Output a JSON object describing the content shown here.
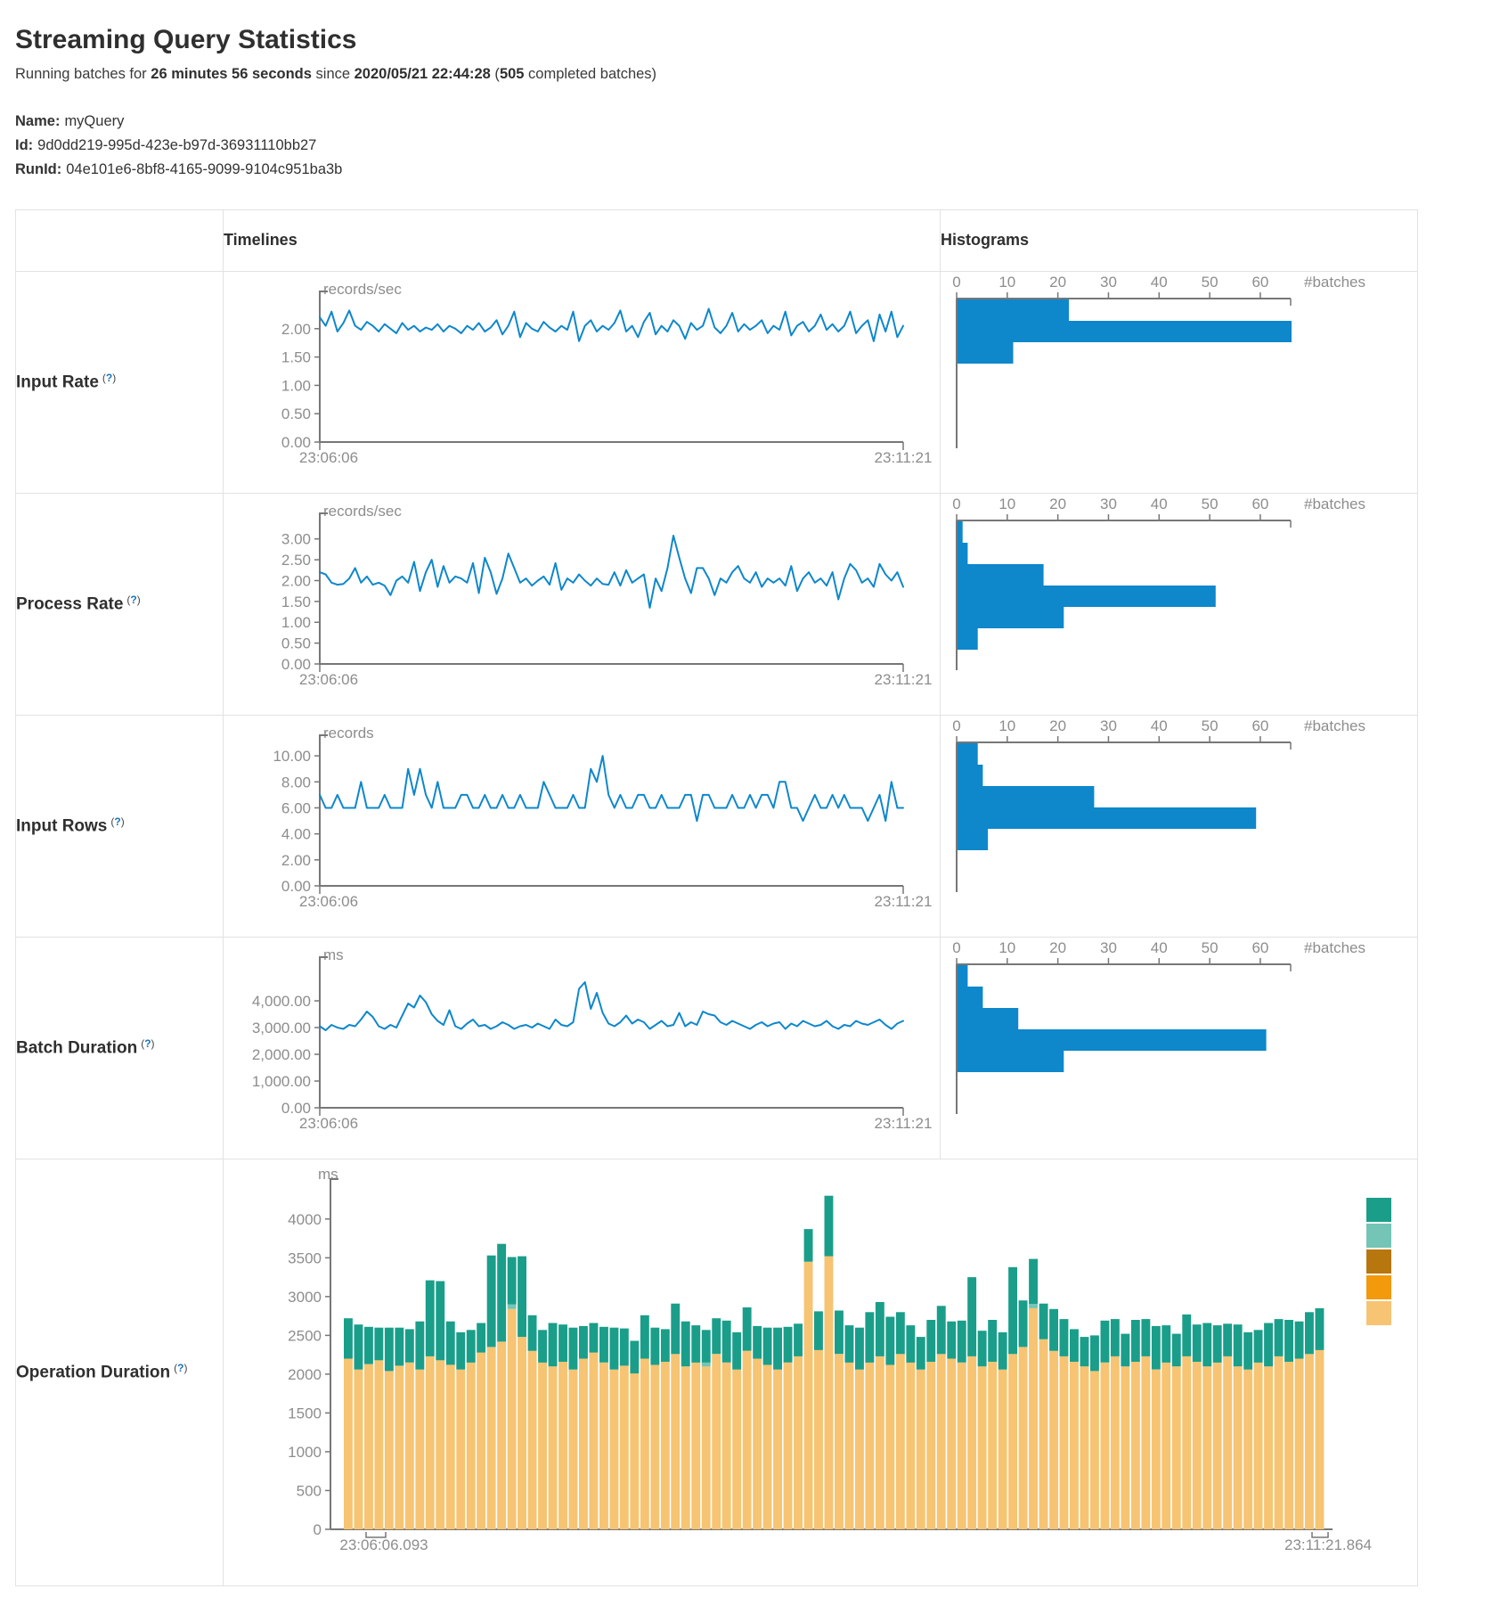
{
  "page": {
    "title": "Streaming Query Statistics",
    "subtitle": {
      "prefix": "Running batches for ",
      "duration": "26 minutes 56 seconds",
      "mid": " since ",
      "start_time": "2020/05/21 22:44:28",
      "paren_open": " (",
      "batches": "505",
      "suffix": " completed batches)"
    },
    "name_label": "Name:",
    "name": "myQuery",
    "id_label": "Id:",
    "id": "9d0dd219-995d-423e-b97d-36931110bb27",
    "runid_label": "RunId:",
    "runid": "04e101e6-8bf8-4165-9099-9104c951ba3b"
  },
  "table": {
    "header": {
      "timelines": "Timelines",
      "histograms": "Histograms"
    },
    "help": {
      "open": "(",
      "q": "?",
      "close": ")"
    },
    "rows": [
      {
        "label": "Input Rate"
      },
      {
        "label": "Process Rate"
      },
      {
        "label": "Input Rows"
      },
      {
        "label": "Batch Duration"
      },
      {
        "label": "Operation Duration"
      }
    ]
  },
  "colors": {
    "blue": "#0e87cb",
    "axis": "#777777",
    "ticktext": "#8d8d8d"
  },
  "chart_data": [
    {
      "type": "line",
      "title": "Input Rate timeline",
      "unit": "records/sec",
      "ylim": [
        0,
        2.5
      ],
      "yticks": [
        {
          "v": 0,
          "label": "0.00"
        },
        {
          "v": 0.5,
          "label": "0.50"
        },
        {
          "v": 1,
          "label": "1.00"
        },
        {
          "v": 1.5,
          "label": "1.50"
        },
        {
          "v": 2,
          "label": "2.00"
        }
      ],
      "x_start_label": "23:06:06",
      "x_end_label": "23:11:21",
      "color": "#0e87cb",
      "values": [
        2.2,
        2.05,
        2.3,
        1.95,
        2.1,
        2.32,
        2.05,
        1.98,
        2.12,
        2.05,
        1.95,
        2.08,
        2.0,
        1.92,
        2.1,
        1.98,
        2.05,
        1.95,
        2.02,
        1.98,
        2.08,
        1.95,
        2.05,
        2.0,
        1.92,
        2.05,
        1.98,
        2.1,
        1.95,
        2.02,
        2.15,
        1.9,
        2.05,
        2.3,
        1.85,
        2.1,
        2.0,
        1.95,
        2.12,
        2.02,
        1.95,
        2.05,
        1.98,
        2.3,
        1.78,
        2.05,
        2.15,
        1.95,
        2.05,
        1.98,
        2.1,
        2.32,
        1.95,
        2.05,
        1.85,
        2.12,
        2.28,
        1.9,
        2.05,
        1.95,
        2.15,
        2.05,
        1.82,
        2.1,
        1.98,
        2.05,
        2.35,
        2.02,
        1.92,
        2.05,
        2.28,
        1.95,
        2.08,
        1.98,
        2.05,
        2.15,
        1.92,
        2.05,
        1.98,
        2.3,
        1.88,
        2.05,
        2.12,
        1.95,
        2.05,
        2.25,
        1.98,
        2.08,
        1.95,
        2.05,
        2.3,
        1.92,
        2.05,
        2.15,
        1.78,
        2.25,
        1.95,
        2.3,
        1.85,
        2.05
      ]
    },
    {
      "type": "hbar",
      "title": "Input Rate histogram",
      "xlabel": "#batches",
      "xticks": [
        0,
        10,
        20,
        30,
        40,
        50,
        60
      ],
      "xmax": 66,
      "color": "#0e87cb",
      "values": [
        22,
        66,
        11
      ]
    },
    {
      "type": "line",
      "title": "Process Rate timeline",
      "unit": "records/sec",
      "ylim": [
        0,
        3.4
      ],
      "yticks": [
        {
          "v": 0,
          "label": "0.00"
        },
        {
          "v": 0.5,
          "label": "0.50"
        },
        {
          "v": 1,
          "label": "1.00"
        },
        {
          "v": 1.5,
          "label": "1.50"
        },
        {
          "v": 2,
          "label": "2.00"
        },
        {
          "v": 2.5,
          "label": "2.50"
        },
        {
          "v": 3,
          "label": "3.00"
        }
      ],
      "x_start_label": "23:06:06",
      "x_end_label": "23:11:21",
      "color": "#0e87cb",
      "values": [
        2.2,
        2.15,
        1.95,
        1.9,
        1.92,
        2.05,
        2.3,
        1.95,
        2.1,
        1.9,
        1.95,
        1.88,
        1.65,
        2.0,
        2.1,
        1.95,
        2.45,
        1.75,
        2.2,
        2.5,
        1.85,
        2.35,
        1.95,
        2.1,
        2.05,
        1.95,
        2.42,
        1.7,
        2.55,
        2.2,
        1.68,
        2.05,
        2.65,
        2.3,
        1.95,
        2.05,
        1.88,
        2.0,
        2.1,
        1.9,
        2.42,
        1.78,
        2.05,
        1.95,
        2.15,
        2.0,
        1.88,
        2.05,
        1.92,
        1.9,
        2.2,
        1.88,
        2.25,
        1.95,
        2.05,
        2.15,
        1.35,
        2.05,
        1.75,
        2.3,
        3.08,
        2.55,
        2.05,
        1.7,
        2.3,
        2.3,
        2.05,
        1.65,
        2.05,
        1.95,
        2.2,
        2.35,
        2.05,
        1.95,
        2.2,
        1.85,
        2.05,
        1.95,
        2.05,
        1.88,
        2.35,
        1.75,
        2.05,
        2.2,
        1.95,
        2.05,
        1.88,
        2.2,
        1.55,
        2.05,
        2.4,
        2.25,
        1.95,
        2.05,
        1.85,
        2.4,
        2.15,
        2.0,
        2.2,
        1.85
      ]
    },
    {
      "type": "hbar",
      "title": "Process Rate histogram",
      "xlabel": "#batches",
      "xticks": [
        0,
        10,
        20,
        30,
        40,
        50,
        60
      ],
      "xmax": 66,
      "color": "#0e87cb",
      "values": [
        1,
        2,
        17,
        51,
        21,
        4
      ]
    },
    {
      "type": "line",
      "title": "Input Rows timeline",
      "unit": "records",
      "ylim": [
        0,
        10.9
      ],
      "yticks": [
        {
          "v": 0,
          "label": "0.00"
        },
        {
          "v": 2,
          "label": "2.00"
        },
        {
          "v": 4,
          "label": "4.00"
        },
        {
          "v": 6,
          "label": "6.00"
        },
        {
          "v": 8,
          "label": "8.00"
        },
        {
          "v": 10,
          "label": "10.00"
        }
      ],
      "x_start_label": "23:06:06",
      "x_end_label": "23:11:21",
      "color": "#0e87cb",
      "values": [
        7,
        6,
        6,
        7,
        6,
        6,
        6,
        8,
        6,
        6,
        6,
        7,
        6,
        6,
        6,
        9,
        7,
        9,
        7,
        6,
        8,
        6,
        6,
        6,
        7,
        7,
        6,
        6,
        7,
        6,
        6,
        7,
        6,
        6,
        7,
        6,
        6,
        6,
        8,
        7,
        6,
        6,
        6,
        7,
        6,
        6,
        9,
        8,
        10,
        7,
        6,
        7,
        6,
        6,
        7,
        7,
        6,
        6,
        7,
        6,
        6,
        6,
        7,
        7,
        5,
        7,
        7,
        6,
        6,
        6,
        7,
        6,
        6,
        7,
        6,
        7,
        7,
        6,
        8,
        8,
        6,
        6,
        5,
        6,
        7,
        6,
        6,
        7,
        6,
        7,
        6,
        6,
        6,
        5,
        6,
        7,
        5,
        8,
        6,
        6
      ]
    },
    {
      "type": "hbar",
      "title": "Input Rows histogram",
      "xlabel": "#batches",
      "xticks": [
        0,
        10,
        20,
        30,
        40,
        50,
        60
      ],
      "xmax": 66,
      "color": "#0e87cb",
      "values": [
        4,
        5,
        27,
        59,
        6
      ]
    },
    {
      "type": "line",
      "title": "Batch Duration timeline",
      "unit": "ms",
      "ylim": [
        0,
        5300
      ],
      "yticks": [
        {
          "v": 0,
          "label": "0.00"
        },
        {
          "v": 1000,
          "label": "1,000.00"
        },
        {
          "v": 2000,
          "label": "2,000.00"
        },
        {
          "v": 3000,
          "label": "3,000.00"
        },
        {
          "v": 4000,
          "label": "4,000.00"
        }
      ],
      "x_start_label": "23:06:06",
      "x_end_label": "23:11:21",
      "color": "#0e87cb",
      "values": [
        3050,
        2900,
        3100,
        3000,
        2950,
        3100,
        3050,
        3300,
        3600,
        3400,
        3050,
        2950,
        3100,
        3000,
        3450,
        3900,
        3750,
        4200,
        3950,
        3500,
        3250,
        3100,
        3650,
        3050,
        2950,
        3150,
        3300,
        3050,
        3100,
        2950,
        3050,
        3200,
        3100,
        2950,
        3050,
        3100,
        3000,
        3150,
        3050,
        2950,
        3300,
        3100,
        3050,
        3200,
        4450,
        4700,
        3700,
        4300,
        3550,
        3150,
        3050,
        3200,
        3450,
        3150,
        3300,
        3200,
        2950,
        3100,
        3250,
        3050,
        3100,
        3550,
        3050,
        3200,
        3100,
        3600,
        3500,
        3450,
        3200,
        3100,
        3250,
        3150,
        3050,
        2950,
        3100,
        3200,
        3050,
        3150,
        3200,
        2950,
        3150,
        3050,
        3250,
        3150,
        3050,
        3100,
        3250,
        3050,
        2950,
        3100,
        3050,
        3250,
        3150,
        3100,
        3200,
        3300,
        3100,
        2950,
        3150,
        3250
      ]
    },
    {
      "type": "hbar",
      "title": "Batch Duration histogram",
      "xlabel": "#batches",
      "xticks": [
        0,
        10,
        20,
        30,
        40,
        50,
        60
      ],
      "xmax": 66,
      "color": "#0e87cb",
      "values": [
        2,
        5,
        12,
        61,
        21
      ]
    },
    {
      "type": "stacked",
      "title": "Operation Duration",
      "unit": "ms",
      "ylim": [
        0,
        4400
      ],
      "yticks": [
        {
          "v": 0,
          "label": "0"
        },
        {
          "v": 500,
          "label": "500"
        },
        {
          "v": 1000,
          "label": "1000"
        },
        {
          "v": 1500,
          "label": "1500"
        },
        {
          "v": 2000,
          "label": "2000"
        },
        {
          "v": 2500,
          "label": "2500"
        },
        {
          "v": 3000,
          "label": "3000"
        },
        {
          "v": 3500,
          "label": "3500"
        },
        {
          "v": 4000,
          "label": "4000"
        }
      ],
      "x_start_label": "23:06:06.093",
      "x_end_label": "23:11:21.864",
      "legend_colors": [
        "#1a9e8a",
        "#74c5b6",
        "#b8770e",
        "#f2990c",
        "#f6c472"
      ],
      "series": [
        {
          "name": "tan-bottom",
          "color": "#f6c472",
          "values": [
            2200,
            2060,
            2130,
            2180,
            2040,
            2110,
            2150,
            2060,
            2230,
            2180,
            2120,
            2060,
            2150,
            2280,
            2350,
            2420,
            2840,
            2480,
            2300,
            2150,
            2100,
            2160,
            2060,
            2200,
            2280,
            2150,
            2060,
            2110,
            2010,
            2200,
            2120,
            2160,
            2260,
            2100,
            2150,
            2100,
            2260,
            2150,
            2060,
            2300,
            2200,
            2120,
            2060,
            2150,
            2230,
            3450,
            2310,
            3520,
            2260,
            2150,
            2060,
            2150,
            2230,
            2120,
            2260,
            2150,
            2060,
            2160,
            2260,
            2200,
            2150,
            2230,
            2100,
            2160,
            2060,
            2260,
            2350,
            2850,
            2450,
            2300,
            2230,
            2160,
            2100,
            2040,
            2150,
            2230,
            2100,
            2160,
            2230,
            2060,
            2150,
            2100,
            2230,
            2160,
            2100,
            2150,
            2230,
            2100,
            2060,
            2150,
            2100,
            2230,
            2160,
            2200,
            2260,
            2310
          ]
        },
        {
          "name": "light-teal-middle",
          "color": "#74c5b6",
          "values": [
            0,
            0,
            0,
            0,
            0,
            0,
            0,
            0,
            0,
            0,
            0,
            0,
            0,
            0,
            0,
            0,
            60,
            0,
            0,
            0,
            0,
            0,
            0,
            0,
            0,
            0,
            0,
            0,
            0,
            0,
            0,
            0,
            0,
            0,
            0,
            50,
            0,
            0,
            0,
            0,
            0,
            0,
            0,
            0,
            0,
            0,
            0,
            0,
            0,
            0,
            0,
            0,
            0,
            0,
            0,
            0,
            0,
            0,
            0,
            0,
            0,
            0,
            0,
            0,
            0,
            0,
            0,
            55,
            0,
            0,
            0,
            0,
            0,
            0,
            0,
            0,
            0,
            0,
            0,
            0,
            0,
            0,
            0,
            0,
            0,
            0,
            0,
            0,
            0,
            0,
            0,
            0,
            0,
            0,
            0,
            0
          ]
        },
        {
          "name": "teal-top",
          "color": "#1a9e8a",
          "values": [
            520,
            580,
            480,
            420,
            560,
            490,
            430,
            620,
            980,
            1020,
            560,
            480,
            420,
            380,
            1180,
            1260,
            610,
            1040,
            460,
            420,
            560,
            480,
            540,
            420,
            380,
            460,
            540,
            480,
            420,
            560,
            480,
            420,
            650,
            580,
            480,
            420,
            460,
            540,
            480,
            560,
            420,
            480,
            540,
            460,
            420,
            420,
            500,
            780,
            560,
            480,
            540,
            650,
            700,
            620,
            540,
            480,
            420,
            540,
            620,
            480,
            540,
            1020,
            460,
            540,
            480,
            1120,
            600,
            580,
            460,
            540,
            480,
            420,
            380,
            460,
            540,
            480,
            420,
            540,
            480,
            560,
            480,
            420,
            540,
            480,
            560,
            480,
            420,
            540,
            480,
            420,
            560,
            480,
            540,
            480,
            540,
            540
          ]
        }
      ]
    }
  ]
}
